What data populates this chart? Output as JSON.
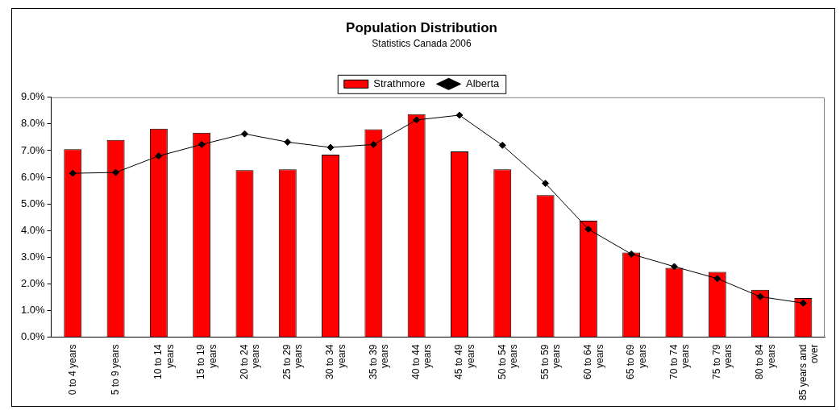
{
  "chart_data": {
    "type": "bar",
    "title": "Population Distribution",
    "subtitle": "Statistics Canada 2006",
    "categories": [
      "0 to 4 years",
      "5 to 9 years",
      "10 to 14 years",
      "15 to 19 years",
      "20 to 24 years",
      "25 to 29 years",
      "30 to 34 years",
      "35 to 39 years",
      "40 to 44 years",
      "45 to 49 years",
      "50 to 54 years",
      "55 to 59 years",
      "60 to 64 years",
      "65 to 69 years",
      "70 to 74 years",
      "75 to 79 years",
      "80 to 84 years",
      "85 years and over"
    ],
    "series": [
      {
        "name": "Strathmore",
        "color": "#ff0000",
        "values": [
          7.05,
          7.4,
          7.82,
          7.67,
          6.27,
          6.3,
          6.85,
          7.8,
          8.37,
          6.97,
          6.3,
          5.33,
          4.37,
          3.18,
          2.6,
          2.45,
          1.78,
          1.47
        ]
      },
      {
        "name": "Alberta",
        "type": "line",
        "color": "#000000",
        "marker": "diamond",
        "values": [
          6.15,
          6.18,
          6.8,
          7.23,
          7.63,
          7.32,
          7.12,
          7.23,
          8.15,
          8.33,
          7.2,
          5.77,
          4.05,
          3.12,
          2.65,
          2.2,
          1.52,
          1.28
        ]
      }
    ],
    "ylim": [
      0,
      9
    ],
    "yticks": [
      {
        "value": 0,
        "label": "0.0%"
      },
      {
        "value": 1,
        "label": "1.0%"
      },
      {
        "value": 2,
        "label": "2.0%"
      },
      {
        "value": 3,
        "label": "3.0%"
      },
      {
        "value": 4,
        "label": "4.0%"
      },
      {
        "value": 5,
        "label": "5.0%"
      },
      {
        "value": 6,
        "label": "6.0%"
      },
      {
        "value": 7,
        "label": "7.0%"
      },
      {
        "value": 8,
        "label": "8.0%"
      },
      {
        "value": 9,
        "label": "9.0%"
      }
    ],
    "grid": false,
    "legend": "top"
  }
}
